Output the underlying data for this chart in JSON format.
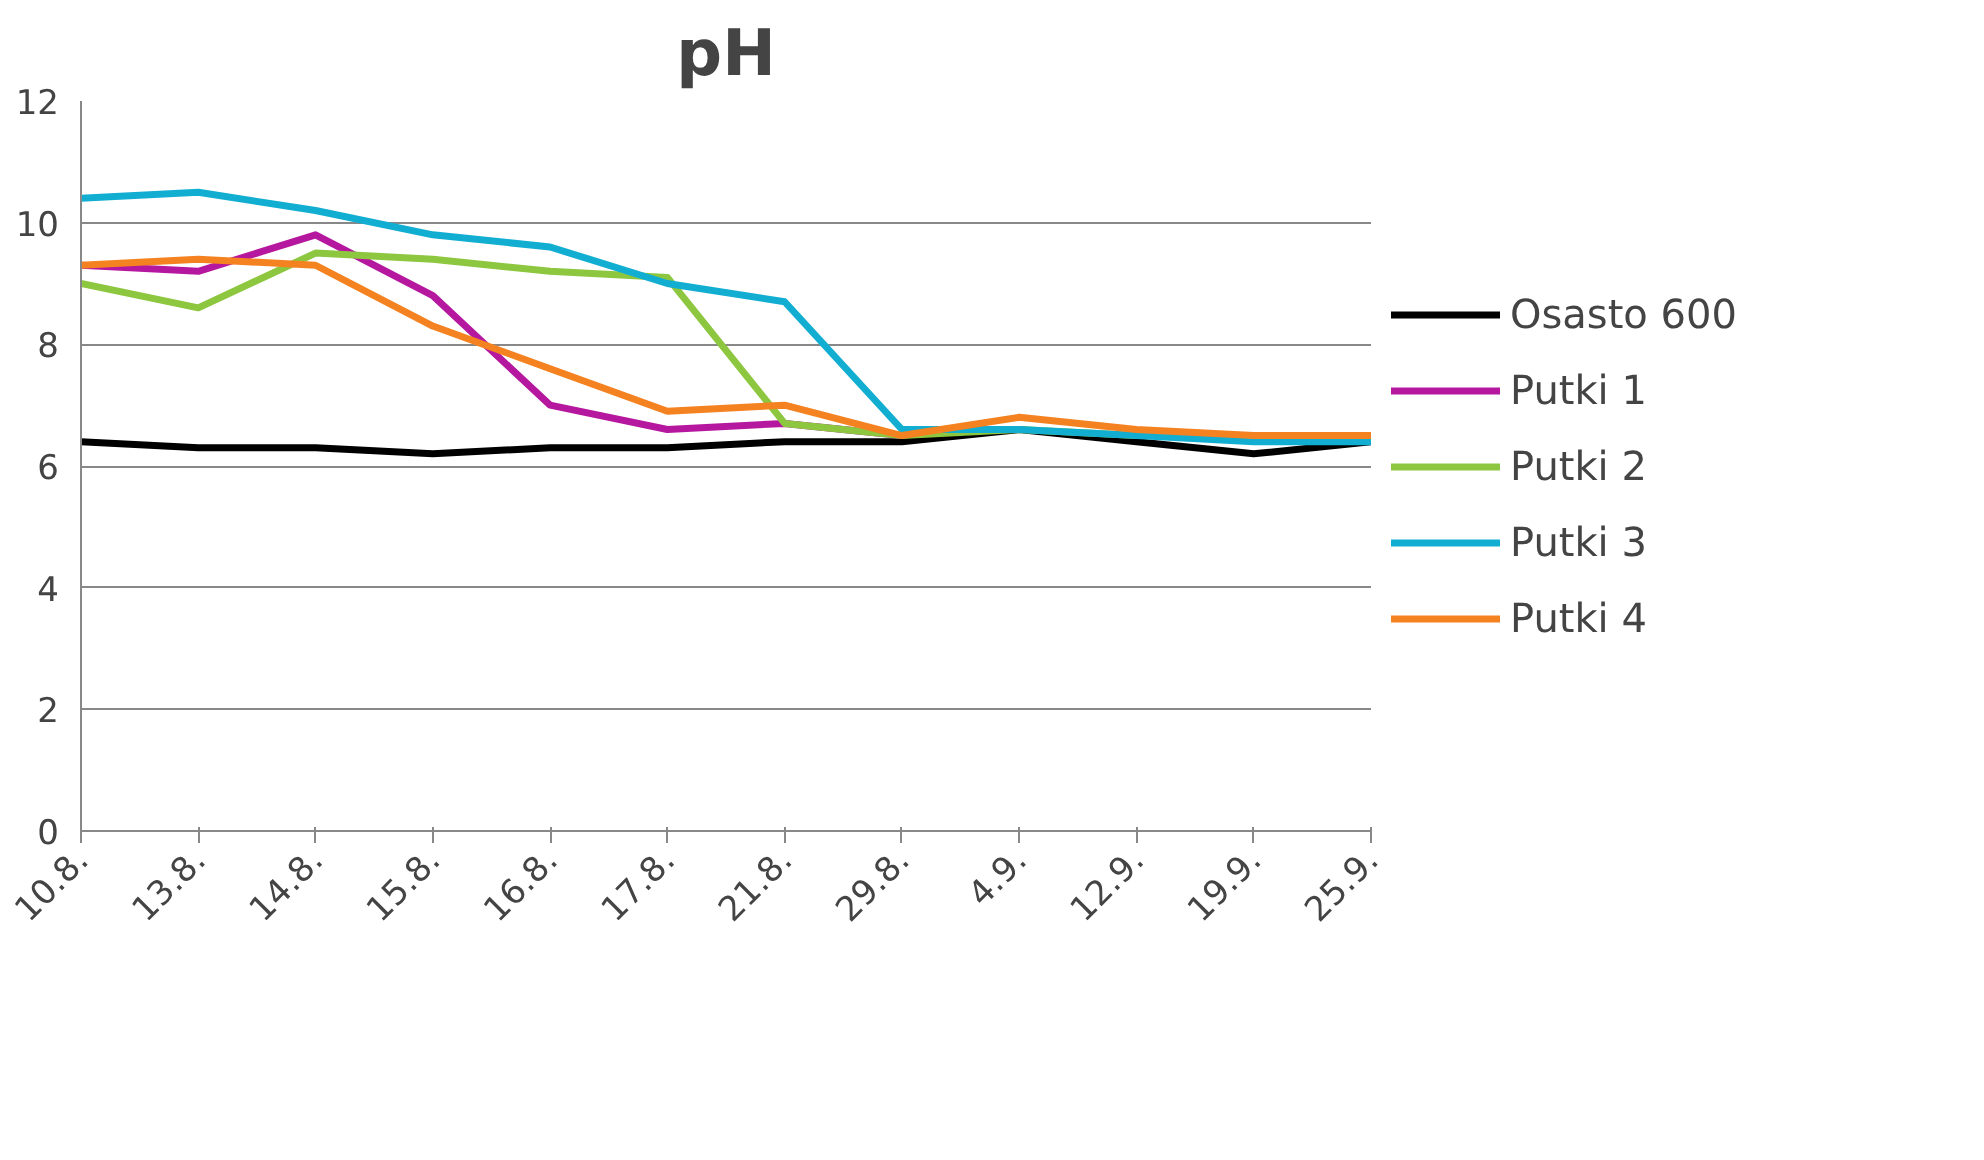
{
  "chart_data": {
    "type": "line",
    "title": "pH",
    "categories": [
      "10.8.",
      "13.8.",
      "14.8.",
      "15.8.",
      "16.8.",
      "17.8.",
      "21.8.",
      "29.8.",
      "4.9.",
      "12.9.",
      "19.9.",
      "25.9."
    ],
    "series": [
      {
        "name": "Osasto 600",
        "color": "#000000",
        "values": [
          6.4,
          6.3,
          6.3,
          6.2,
          6.3,
          6.3,
          6.4,
          6.4,
          6.6,
          6.4,
          6.2,
          6.4
        ]
      },
      {
        "name": "Putki 1",
        "color": "#b5179e",
        "values": [
          9.3,
          9.2,
          9.8,
          8.8,
          7.0,
          6.6,
          6.7,
          6.5,
          null,
          null,
          null,
          null
        ]
      },
      {
        "name": "Putki 2",
        "color": "#8dc63f",
        "values": [
          9.0,
          8.6,
          9.5,
          9.4,
          9.2,
          9.1,
          6.7,
          6.5,
          6.6,
          6.5,
          null,
          null
        ]
      },
      {
        "name": "Putki 3",
        "color": "#12aed2",
        "values": [
          10.4,
          10.5,
          10.2,
          9.8,
          9.6,
          9.0,
          8.7,
          6.6,
          6.6,
          6.5,
          6.4,
          6.4
        ]
      },
      {
        "name": "Putki 4",
        "color": "#f58220",
        "values": [
          9.3,
          9.4,
          9.3,
          8.3,
          7.6,
          6.9,
          7.0,
          6.5,
          6.8,
          6.6,
          6.5,
          6.5
        ]
      }
    ],
    "ylim": [
      0,
      12
    ],
    "yticks": [
      0,
      2,
      4,
      6,
      8,
      10,
      12
    ],
    "grid": "y",
    "legend": "right",
    "marker": "none",
    "line_style": "solid"
  }
}
